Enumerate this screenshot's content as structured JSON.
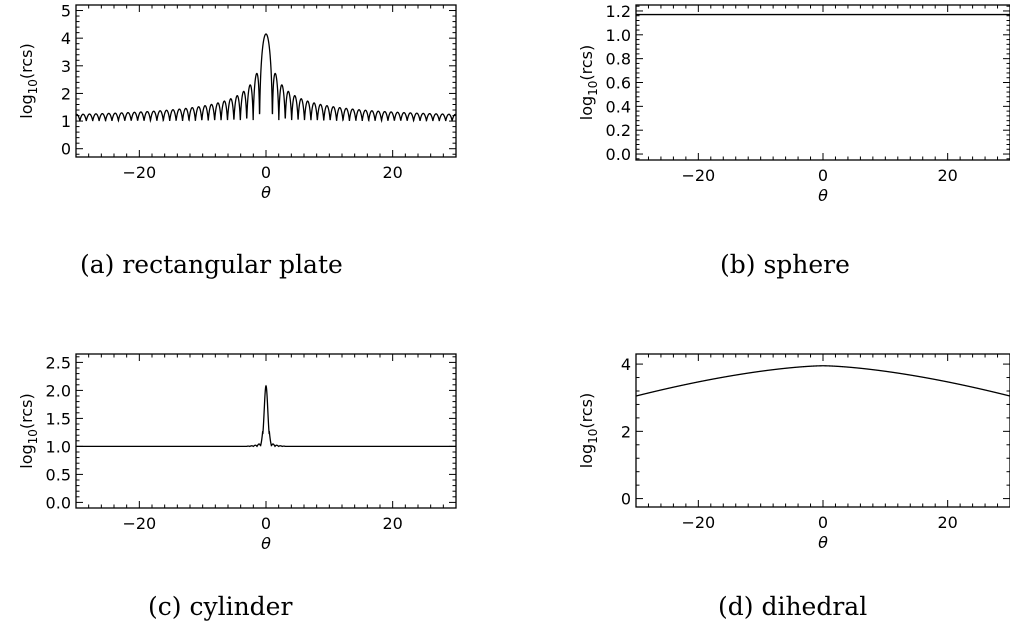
{
  "chart_data": [
    {
      "type": "line",
      "caption": "(a) rectangular plate",
      "xlabel": "θ",
      "ylabel": "log10(rcs)",
      "xlim": [
        -30,
        30
      ],
      "ylim": [
        -0.3,
        5.2
      ],
      "xticks": [
        -20,
        0,
        20
      ],
      "yticks": [
        0,
        1,
        2,
        3,
        4,
        5
      ],
      "ytick_labels": [
        "0",
        "1",
        "2",
        "3",
        "4",
        "5"
      ],
      "series": [
        {
          "shape": "sinc-pattern",
          "peak": {
            "x": 0,
            "y": 4.15
          },
          "baseline_y": 1.0,
          "lobe_peaks": [
            {
              "x": 1.5,
              "y": 2.8
            },
            {
              "x": 2.5,
              "y": 2.4
            },
            {
              "x": 3.5,
              "y": 2.15
            },
            {
              "x": 5,
              "y": 1.9
            },
            {
              "x": 7,
              "y": 1.6
            },
            {
              "x": 10,
              "y": 1.4
            },
            {
              "x": 15,
              "y": 1.2
            },
            {
              "x": 20,
              "y": 1.1
            },
            {
              "x": 30,
              "y": 1.05
            }
          ]
        }
      ]
    },
    {
      "type": "line",
      "caption": "(b) sphere",
      "xlabel": "θ",
      "ylabel": "log10(rcs)",
      "xlim": [
        -30,
        30
      ],
      "ylim": [
        -0.05,
        1.25
      ],
      "xticks": [
        -20,
        0,
        20
      ],
      "yticks": [
        0.0,
        0.2,
        0.4,
        0.6,
        0.8,
        1.0,
        1.2
      ],
      "ytick_labels": [
        "0.0",
        "0.2",
        "0.4",
        "0.6",
        "0.8",
        "1.0",
        "1.2"
      ],
      "series": [
        {
          "shape": "constant",
          "value": 1.17
        }
      ]
    },
    {
      "type": "line",
      "caption": "(c) cylinder",
      "xlabel": "θ",
      "ylabel": "log10(rcs)",
      "xlim": [
        -30,
        30
      ],
      "ylim": [
        -0.1,
        2.65
      ],
      "xticks": [
        -20,
        0,
        20
      ],
      "yticks": [
        0.0,
        0.5,
        1.0,
        1.5,
        2.0,
        2.5
      ],
      "ytick_labels": [
        "0.0",
        "0.5",
        "1.0",
        "1.5",
        "2.0",
        "2.5"
      ],
      "series": [
        {
          "shape": "narrow-peak",
          "peak": {
            "x": 0,
            "y": 2.08
          },
          "baseline_y": 1.0
        }
      ]
    },
    {
      "type": "line",
      "caption": "(d) dihedral",
      "xlabel": "θ",
      "ylabel": "log10(rcs)",
      "xlim": [
        -30,
        30
      ],
      "ylim": [
        -0.25,
        4.3
      ],
      "xticks": [
        -20,
        0,
        20
      ],
      "yticks": [
        0,
        2,
        4
      ],
      "ytick_labels": [
        "0",
        "2",
        "4"
      ],
      "series": [
        {
          "shape": "arch",
          "peak": {
            "x": 0,
            "y": 3.95
          },
          "edge_y": 3.05
        }
      ]
    }
  ]
}
